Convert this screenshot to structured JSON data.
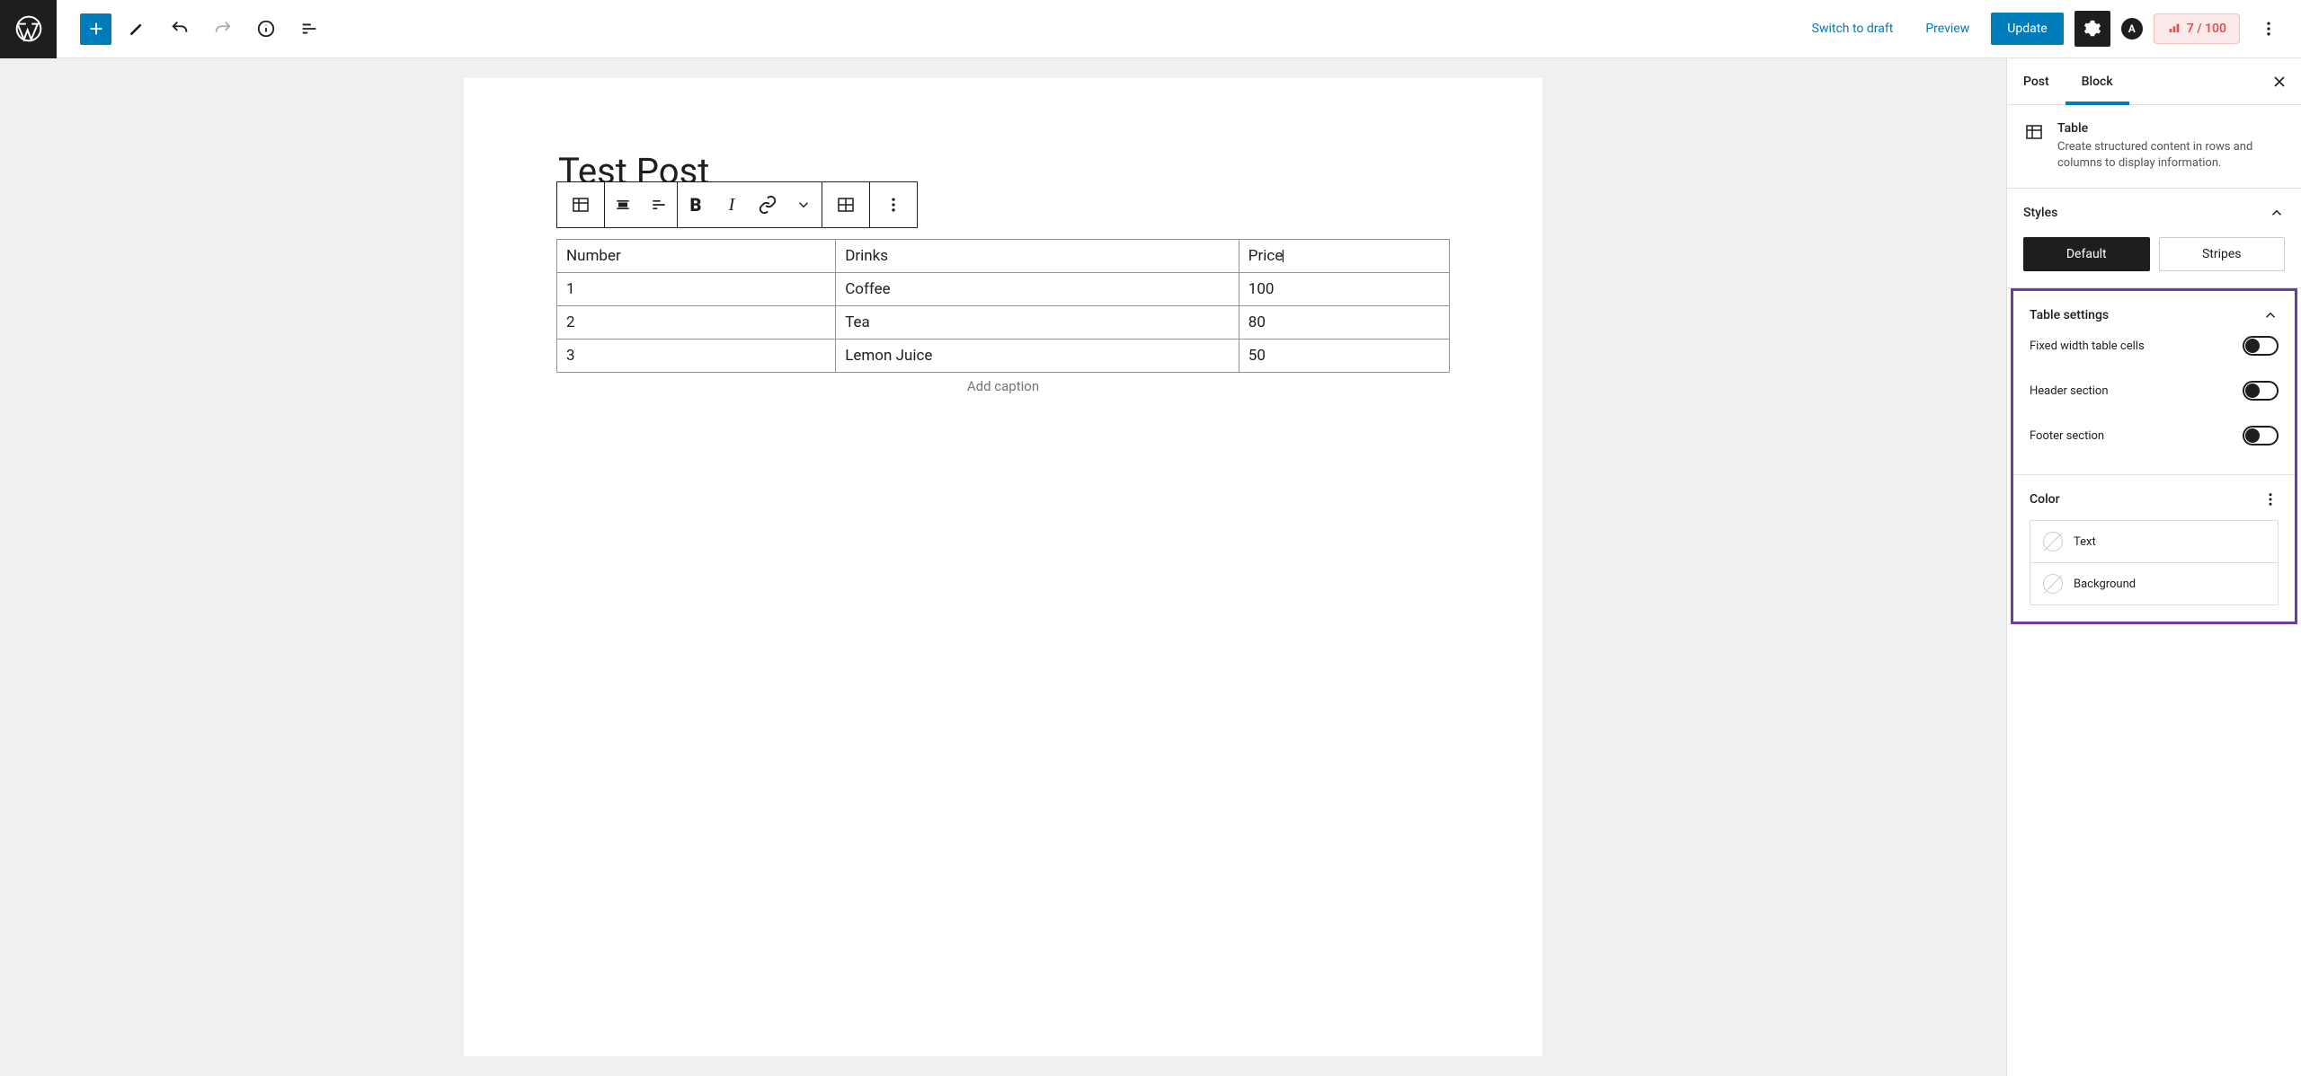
{
  "topbar": {
    "switch_to_draft": "Switch to draft",
    "preview": "Preview",
    "update": "Update",
    "score": "7 / 100"
  },
  "post": {
    "title": "Test Post",
    "caption_placeholder": "Add caption"
  },
  "table": {
    "rows": [
      [
        "Number",
        "Drinks",
        "Price"
      ],
      [
        "1",
        "Coffee",
        "100"
      ],
      [
        "2",
        "Tea",
        "80"
      ],
      [
        "3",
        "Lemon Juice",
        "50"
      ]
    ]
  },
  "sidebar": {
    "tabs": {
      "post": "Post",
      "block": "Block"
    },
    "block": {
      "name": "Table",
      "desc": "Create structured content in rows and columns to display information."
    },
    "styles": {
      "heading": "Styles",
      "default": "Default",
      "stripes": "Stripes"
    },
    "table_settings": {
      "heading": "Table settings",
      "fixed_width": "Fixed width table cells",
      "header": "Header section",
      "footer": "Footer section"
    },
    "color": {
      "heading": "Color",
      "text": "Text",
      "background": "Background"
    }
  },
  "colors": {
    "primary": "#007cba",
    "dark": "#1e1e1e",
    "highlight": "#6b3fa0",
    "score_bg": "#fce9e9",
    "score_border": "#f5c2c2",
    "score_text": "#d9534f",
    "table_border": "#949494"
  }
}
